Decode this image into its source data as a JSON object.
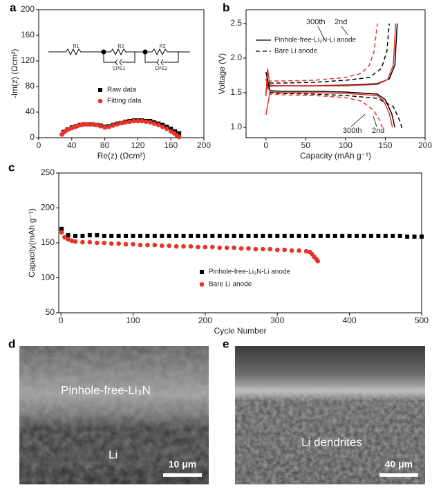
{
  "chart_data": [
    {
      "type": "scatter",
      "label": "a",
      "xlabel": "Re(z) (Ωcm²)",
      "ylabel": "-Im(z) (Ωcm²)",
      "xlim": [
        0,
        200
      ],
      "xticks": [
        0,
        40,
        80,
        120,
        160,
        200
      ],
      "ylim": [
        0,
        200
      ],
      "yticks": [
        0,
        40,
        80,
        120,
        160,
        200
      ],
      "legend": "center",
      "circuit": [
        "R1",
        "R2",
        "CPE1",
        "R3",
        "CPE2"
      ],
      "series": [
        {
          "name": "Raw data",
          "color": "#000000",
          "marker": "square",
          "x": [
            30,
            35,
            40,
            45,
            50,
            55,
            60,
            65,
            70,
            75,
            80,
            85,
            90,
            95,
            100,
            105,
            110,
            115,
            120,
            125,
            130,
            135,
            140,
            145,
            150,
            155,
            160,
            165,
            170
          ],
          "values": [
            9,
            13,
            16,
            18,
            20,
            21,
            21,
            21,
            20,
            19,
            17,
            18,
            20,
            22,
            23,
            25,
            26,
            27,
            27,
            27,
            26,
            26,
            24,
            22,
            20,
            17,
            14,
            10,
            7
          ]
        },
        {
          "name": "Fitting data",
          "color": "#e8332a",
          "marker": "circle",
          "x": [
            28,
            30,
            33,
            36,
            40,
            44,
            48,
            52,
            56,
            60,
            65,
            70,
            75,
            80,
            85,
            90,
            95,
            100,
            105,
            110,
            115,
            120,
            125,
            130,
            135,
            140,
            145,
            150,
            155,
            160,
            164,
            167,
            170
          ],
          "values": [
            5,
            8,
            11,
            13,
            15,
            17,
            19,
            20,
            21,
            21,
            21,
            20,
            18,
            16,
            17,
            19,
            21,
            23,
            24,
            25,
            26,
            26,
            26,
            25,
            24,
            22,
            20,
            17,
            14,
            10,
            7,
            4,
            1
          ]
        }
      ]
    },
    {
      "type": "line",
      "label": "b",
      "xlabel": "Capacity  (mAh g⁻¹)",
      "ylabel": "Voltage (V)",
      "xlim": [
        -25,
        200
      ],
      "xticks": [
        0,
        50,
        100,
        150,
        200
      ],
      "ylim": [
        0.85,
        2.7
      ],
      "yticks": [
        {
          "value": 1,
          "label": "1.0"
        },
        {
          "value": 1.5,
          "label": "1.5"
        },
        {
          "value": 2,
          "label": "2.0"
        },
        {
          "value": 2.5,
          "label": "2.5"
        }
      ],
      "legend": "upper left",
      "annotations": [
        "300th",
        "2nd",
        "300th",
        "2nd"
      ],
      "series": [
        {
          "name": "Pinhole-free-Li₃N-Li anode",
          "dash": "solid",
          "lines": [
            {
              "color": "#000000",
              "x": [
                0,
                2,
                5,
                20,
                60,
                100,
                140,
                155,
                162,
                165
              ],
              "values": [
                1.5,
                1.62,
                1.6,
                1.6,
                1.6,
                1.61,
                1.63,
                1.7,
                1.9,
                2.5
              ]
            },
            {
              "color": "#e8332a",
              "x": [
                0,
                2,
                5,
                20,
                60,
                100,
                140,
                153,
                160,
                163
              ],
              "values": [
                1.45,
                1.85,
                1.61,
                1.6,
                1.6,
                1.6,
                1.62,
                1.69,
                1.9,
                2.5
              ]
            },
            {
              "color": "#000000",
              "x": [
                0,
                5,
                20,
                60,
                100,
                140,
                150,
                158,
                162
              ],
              "values": [
                1.8,
                1.53,
                1.52,
                1.52,
                1.51,
                1.48,
                1.4,
                1.2,
                1.0
              ]
            },
            {
              "color": "#e8332a",
              "x": [
                0,
                5,
                20,
                60,
                100,
                140,
                148,
                155,
                159
              ],
              "values": [
                1.18,
                1.51,
                1.5,
                1.5,
                1.49,
                1.46,
                1.38,
                1.2,
                1.0
              ]
            }
          ]
        },
        {
          "name": "Bare Li anode",
          "dash": "dashed",
          "lines": [
            {
              "color": "#000000",
              "x": [
                0,
                5,
                20,
                60,
                100,
                130,
                145,
                152,
                155
              ],
              "values": [
                1.55,
                1.64,
                1.64,
                1.65,
                1.68,
                1.72,
                1.85,
                2.1,
                2.5
              ]
            },
            {
              "color": "#e8332a",
              "x": [
                0,
                5,
                20,
                60,
                100,
                120,
                130,
                136,
                140
              ],
              "values": [
                1.55,
                1.67,
                1.67,
                1.68,
                1.72,
                1.78,
                1.9,
                2.1,
                2.5
              ]
            },
            {
              "color": "#000000",
              "x": [
                0,
                5,
                20,
                60,
                100,
                140,
                160,
                168,
                172
              ],
              "values": [
                1.7,
                1.5,
                1.49,
                1.48,
                1.46,
                1.42,
                1.3,
                1.1,
                0.95
              ]
            },
            {
              "color": "#e8332a",
              "x": [
                0,
                5,
                20,
                60,
                100,
                120,
                135,
                143,
                148
              ],
              "values": [
                1.7,
                1.48,
                1.47,
                1.46,
                1.43,
                1.38,
                1.25,
                1.1,
                0.95
              ]
            }
          ]
        }
      ]
    },
    {
      "type": "scatter",
      "label": "c",
      "xlabel": "Cycle Number",
      "ylabel": "Capacity(mAh g⁻¹)",
      "xlim": [
        -3,
        500
      ],
      "xticks": [
        0,
        100,
        200,
        300,
        400,
        500
      ],
      "ylim": [
        50,
        250
      ],
      "yticks": [
        50,
        100,
        150,
        200,
        250
      ],
      "legend": "lower center",
      "series": [
        {
          "name": "Pinhole-free-Li₃N-Li anode",
          "color": "#000000",
          "marker": "square",
          "x": [
            1,
            10,
            20,
            30,
            40,
            50,
            60,
            70,
            80,
            90,
            100,
            110,
            120,
            130,
            140,
            150,
            160,
            170,
            180,
            190,
            200,
            210,
            220,
            230,
            240,
            250,
            260,
            270,
            280,
            290,
            300,
            310,
            320,
            330,
            340,
            350,
            360,
            370,
            380,
            390,
            400,
            410,
            420,
            430,
            440,
            450,
            460,
            470,
            480,
            490,
            500
          ],
          "values": [
            170,
            161,
            160,
            160,
            161,
            161,
            160,
            160,
            160,
            160,
            160,
            160,
            160,
            160,
            160,
            160,
            160,
            160,
            160,
            160,
            160,
            160,
            160,
            160,
            160,
            160,
            160,
            160,
            160,
            160,
            160,
            160,
            160,
            160,
            160,
            160,
            160,
            160,
            160,
            160,
            160,
            160,
            160,
            160,
            160,
            160,
            160,
            160,
            159,
            159,
            159
          ]
        },
        {
          "name": "Bare Li anode",
          "color": "#e8332a",
          "marker": "circle",
          "x": [
            1,
            5,
            10,
            15,
            20,
            30,
            40,
            50,
            60,
            70,
            80,
            90,
            100,
            110,
            120,
            130,
            140,
            150,
            160,
            170,
            180,
            190,
            200,
            210,
            220,
            230,
            240,
            250,
            260,
            270,
            280,
            290,
            300,
            310,
            320,
            330,
            340,
            345,
            348,
            351,
            354,
            356
          ],
          "values": [
            165,
            158,
            155,
            153,
            152,
            151,
            151,
            150,
            150,
            149,
            149,
            148,
            148,
            147,
            147,
            147,
            146,
            146,
            145,
            145,
            145,
            144,
            144,
            144,
            143,
            143,
            143,
            142,
            142,
            141,
            141,
            141,
            140,
            140,
            139,
            139,
            138,
            137,
            134,
            130,
            127,
            124
          ]
        }
      ]
    }
  ],
  "images": [
    {
      "label": "d",
      "texts": [
        "Pinhole-free-Li₃N",
        "Li"
      ],
      "scale_bar": "10 μm"
    },
    {
      "label": "e",
      "texts": [
        "Li dendrites"
      ],
      "scale_bar": "40 μm"
    }
  ]
}
